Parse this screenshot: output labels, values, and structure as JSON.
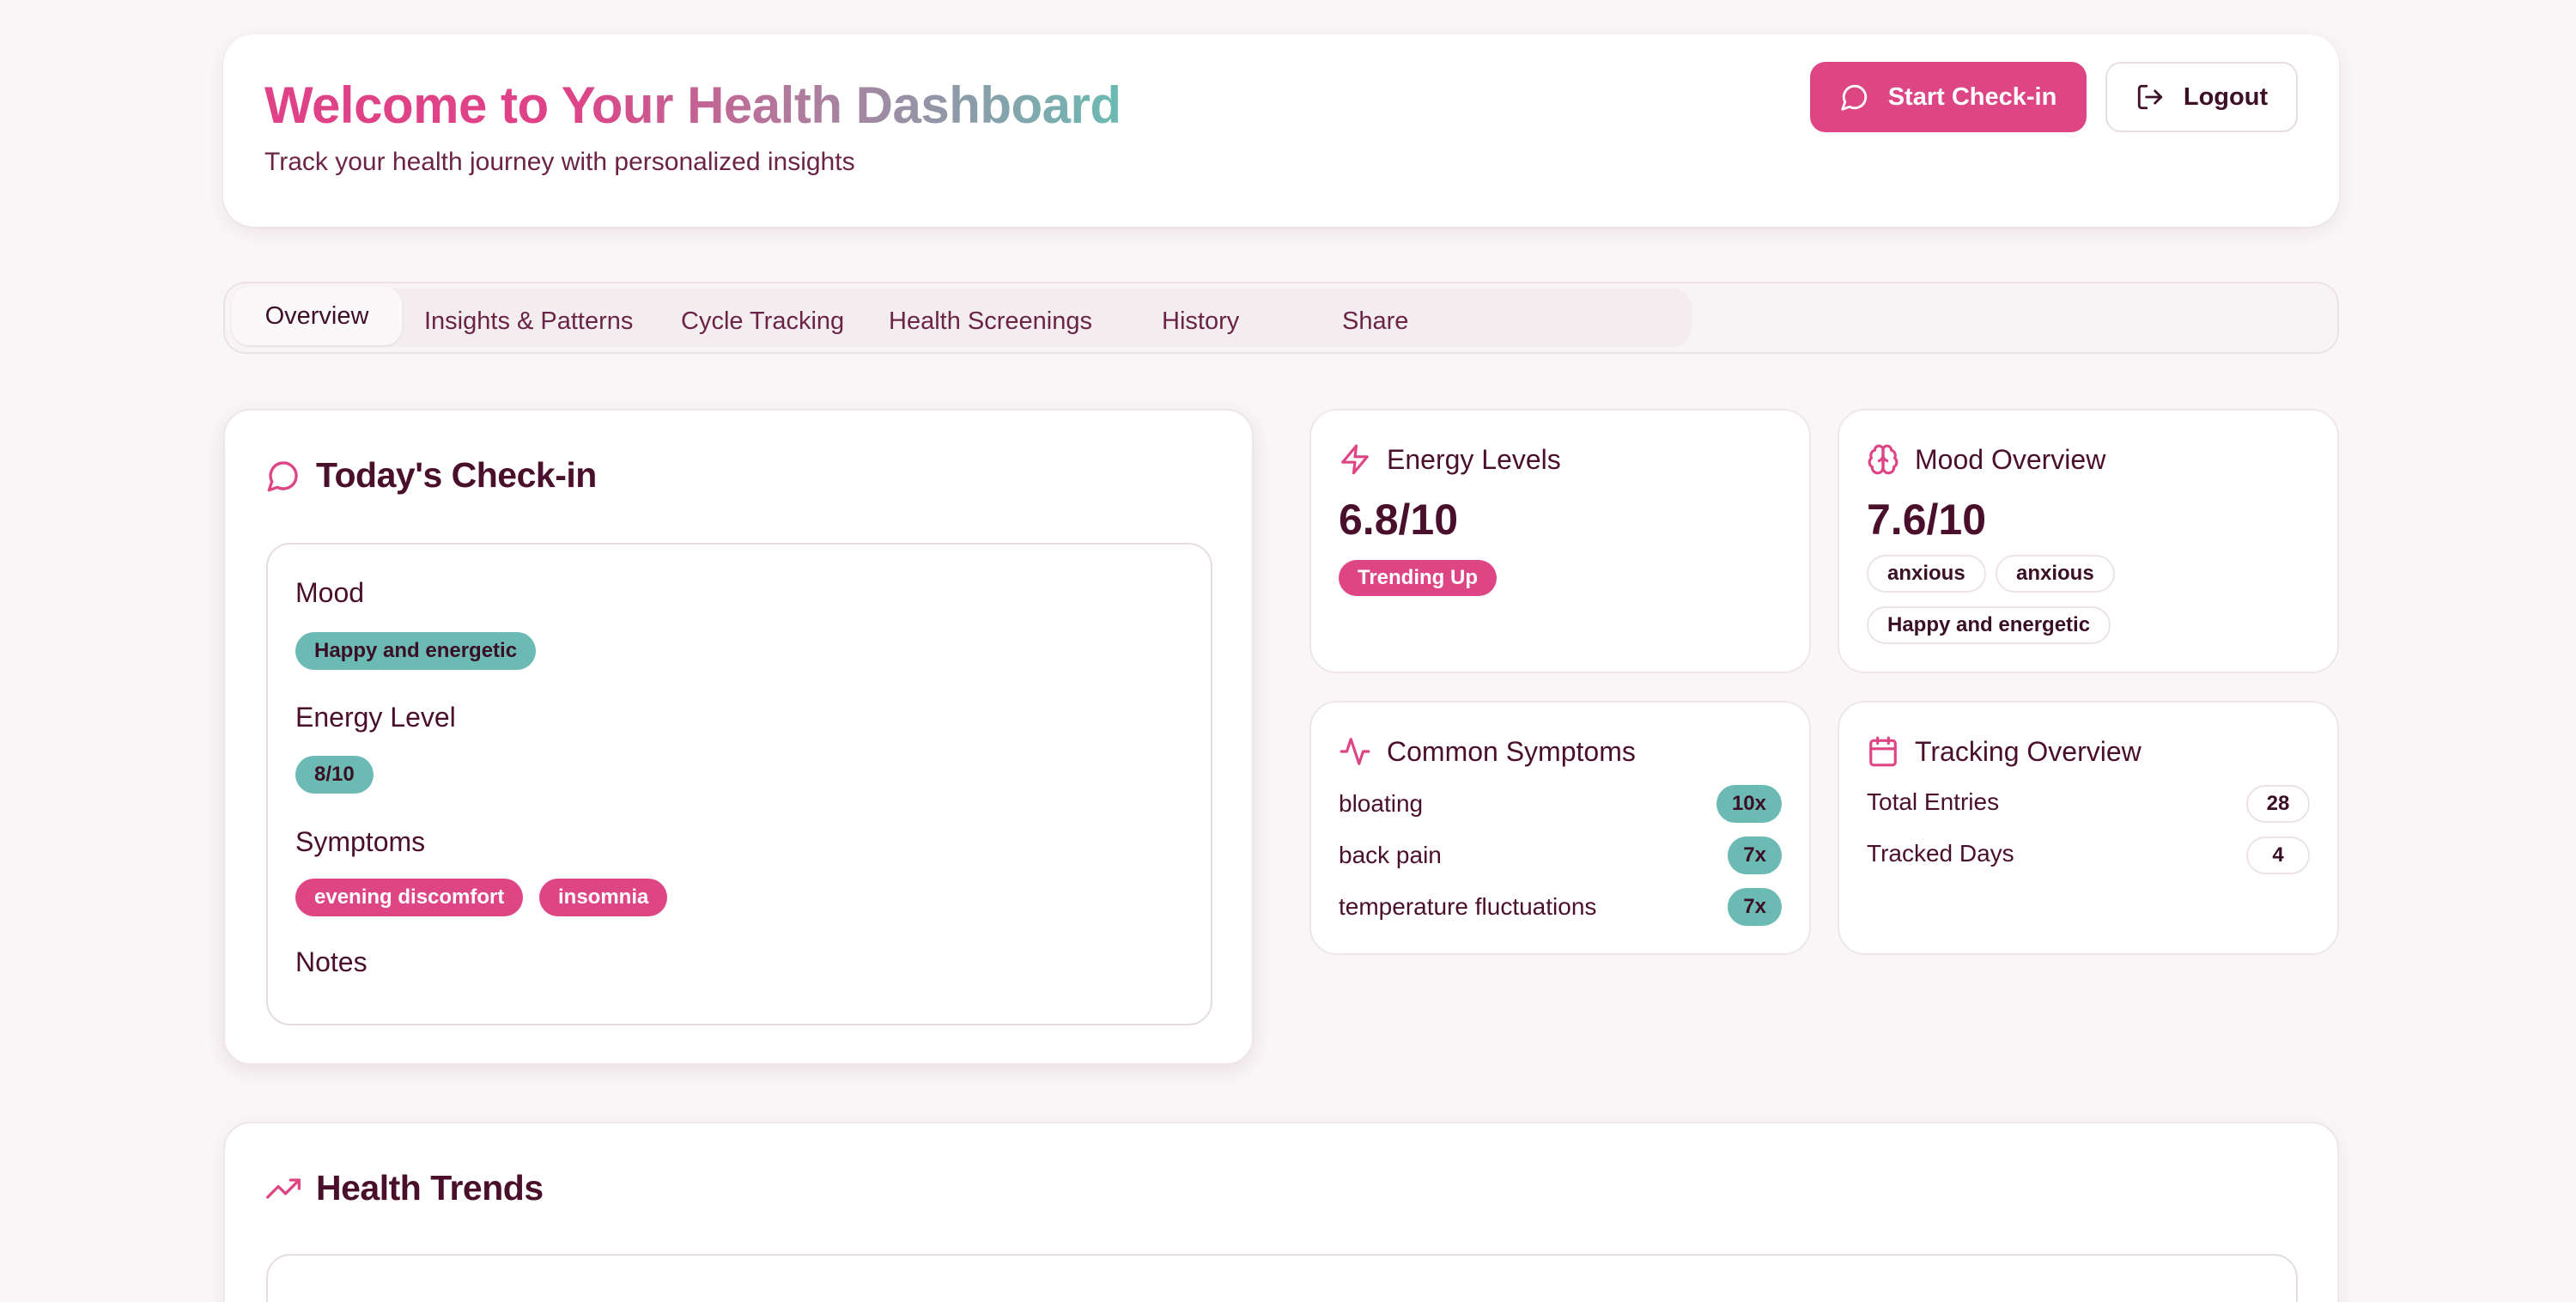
{
  "header": {
    "title": "Welcome to Your Health Dashboard",
    "subtitle": "Track your health journey with personalized insights",
    "start_checkin_label": "Start Check-in",
    "logout_label": "Logout"
  },
  "tabs": [
    {
      "label": "Overview",
      "active": true
    },
    {
      "label": "Insights & Patterns",
      "active": false
    },
    {
      "label": "Cycle Tracking",
      "active": false
    },
    {
      "label": "Health Screenings",
      "active": false
    },
    {
      "label": "History",
      "active": false
    },
    {
      "label": "Share",
      "active": false
    }
  ],
  "checkin": {
    "title": "Today's Check-in",
    "mood_label": "Mood",
    "mood_value": "Happy and energetic",
    "energy_label": "Energy Level",
    "energy_value": "8/10",
    "symptoms_label": "Symptoms",
    "symptoms": [
      "evening discomfort",
      "insomnia"
    ],
    "notes_label": "Notes"
  },
  "energy": {
    "title": "Energy Levels",
    "value": "6.8/10",
    "trend": "Trending Up"
  },
  "mood": {
    "title": "Mood Overview",
    "value": "7.6/10",
    "tags": [
      "anxious",
      "anxious",
      "Happy and energetic"
    ]
  },
  "symptoms_card": {
    "title": "Common Symptoms",
    "items": [
      {
        "name": "bloating",
        "count": "10x"
      },
      {
        "name": "back pain",
        "count": "7x"
      },
      {
        "name": "temperature fluctuations",
        "count": "7x"
      }
    ]
  },
  "tracking": {
    "title": "Tracking Overview",
    "total_entries_label": "Total Entries",
    "total_entries": "28",
    "tracked_days_label": "Tracked Days",
    "tracked_days": "4"
  },
  "trends": {
    "title": "Health Trends"
  },
  "colors": {
    "accent_pink": "#de4585",
    "accent_teal": "#6bbab3",
    "text_dark": "#4a0f2b"
  },
  "icons": {
    "start_checkin": "message-circle-icon",
    "logout": "log-out-icon",
    "checkin": "message-circle-icon",
    "energy": "zap-icon",
    "mood": "brain-icon",
    "symptoms": "activity-icon",
    "tracking": "calendar-icon",
    "trends": "trending-up-icon"
  }
}
